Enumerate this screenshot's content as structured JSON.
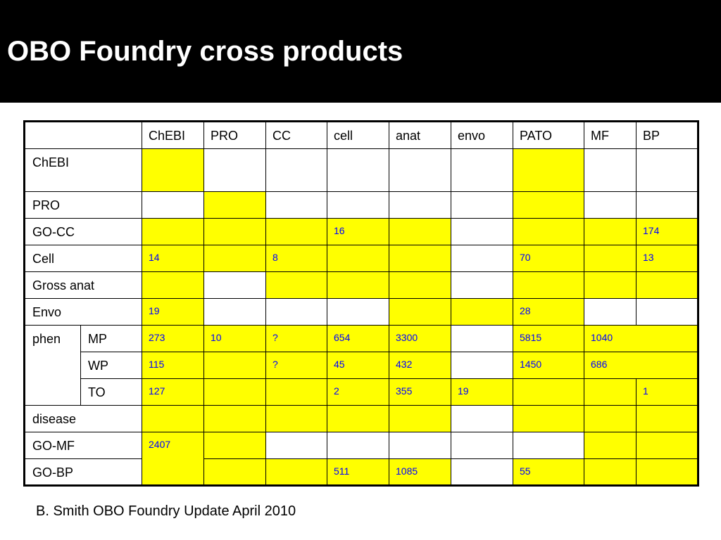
{
  "slide": {
    "title": "OBO Foundry cross products",
    "footer": "B. Smith OBO Foundry Update April 2010"
  },
  "colors": {
    "title_bg": "#000000",
    "title_text": "#ffffff",
    "highlight": "#ffff00",
    "value_text": "#0000ff"
  },
  "table": {
    "columns": [
      "ChEBI",
      "PRO",
      "CC",
      "cell",
      "anat",
      "envo",
      "PATO",
      "MF",
      "BP"
    ],
    "group_label": "phen",
    "rows": {
      "chebi": {
        "label": "ChEBI"
      },
      "pro": {
        "label": "PRO"
      },
      "gocc": {
        "label": "GO-CC",
        "values": {
          "cell": "16",
          "bp": "174"
        }
      },
      "cell": {
        "label": "Cell",
        "values": {
          "chebi": "14",
          "cc": "8",
          "pato": "70",
          "bp": "13"
        }
      },
      "grossanat": {
        "label": "Gross anat"
      },
      "envo": {
        "label": "Envo",
        "values": {
          "chebi": "19",
          "pato": "28"
        }
      },
      "mp": {
        "label": "MP",
        "values": {
          "chebi": "273",
          "pro": "10",
          "cc": "?",
          "cell": "654",
          "anat": "3300",
          "pato": "5815",
          "mfbp": "1040"
        }
      },
      "wp": {
        "label": "WP",
        "values": {
          "chebi": "115",
          "cc": "?",
          "cell": "45",
          "anat": "432",
          "pato": "1450",
          "mfbp": "686"
        }
      },
      "to": {
        "label": "TO",
        "values": {
          "chebi": "127",
          "cell": "2",
          "anat": "355",
          "envo": "19",
          "bp": "1"
        }
      },
      "disease": {
        "label": "disease"
      },
      "gomf": {
        "label": "GO-MF",
        "values": {
          "chebi": "2407"
        }
      },
      "gobp": {
        "label": "GO-BP",
        "values": {
          "cell": "511",
          "anat": "1085",
          "pato": "55"
        }
      }
    }
  }
}
